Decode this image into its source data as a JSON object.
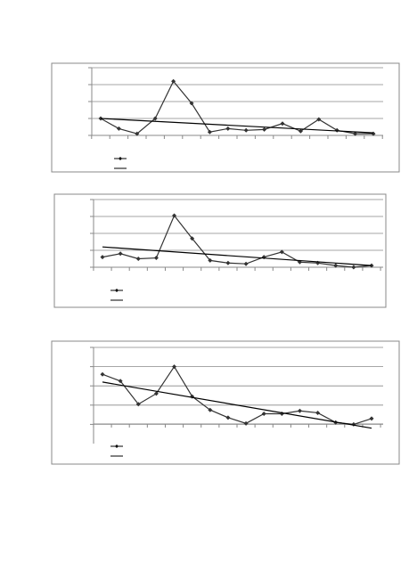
{
  "chart_data": [
    {
      "type": "line",
      "categories": [
        null,
        null,
        null,
        null,
        null,
        null,
        null,
        null,
        null,
        null,
        null,
        null,
        null,
        null,
        null,
        null
      ],
      "series": [
        {
          "color": "#333333",
          "values": [
            1.0,
            0.4,
            0.1,
            1.0,
            3.2,
            1.9,
            0.2,
            0.4,
            0.3,
            0.35,
            0.7,
            0.25,
            0.95,
            0.3,
            0.1,
            0.1
          ]
        }
      ],
      "trend": [
        1.0,
        0.15
      ],
      "ylim": [
        0,
        4
      ],
      "yticks": [
        0,
        1,
        2,
        3,
        4
      ],
      "grid": true
    },
    {
      "type": "line",
      "categories": [
        null,
        null,
        null,
        null,
        null,
        null,
        null,
        null,
        null,
        null,
        null,
        null,
        null,
        null,
        null,
        null
      ],
      "series": [
        {
          "color": "#333333",
          "values": [
            0.6,
            0.8,
            0.5,
            0.55,
            3.05,
            1.7,
            0.4,
            0.25,
            0.2,
            0.6,
            0.9,
            0.3,
            0.25,
            0.1,
            0,
            0.1
          ]
        }
      ],
      "trend": [
        1.2,
        0.1
      ],
      "ylim": [
        0,
        4
      ],
      "yticks": [
        0,
        1,
        2,
        3,
        4
      ],
      "grid": true
    },
    {
      "type": "line",
      "categories": [
        null,
        null,
        null,
        null,
        null,
        null,
        null,
        null,
        null,
        null,
        null,
        null,
        null,
        null,
        null,
        null
      ],
      "series": [
        {
          "color": "#333333",
          "values": [
            2.6,
            2.25,
            1.05,
            1.6,
            3.0,
            1.45,
            0.75,
            0.35,
            0.05,
            0.55,
            0.55,
            0.7,
            0.6,
            0.1,
            0,
            0.3
          ]
        }
      ],
      "trend": [
        2.2,
        -0.2
      ],
      "ylim": [
        -1,
        4
      ],
      "yticks": [
        0,
        1,
        2,
        3,
        4
      ],
      "grid": true
    }
  ]
}
